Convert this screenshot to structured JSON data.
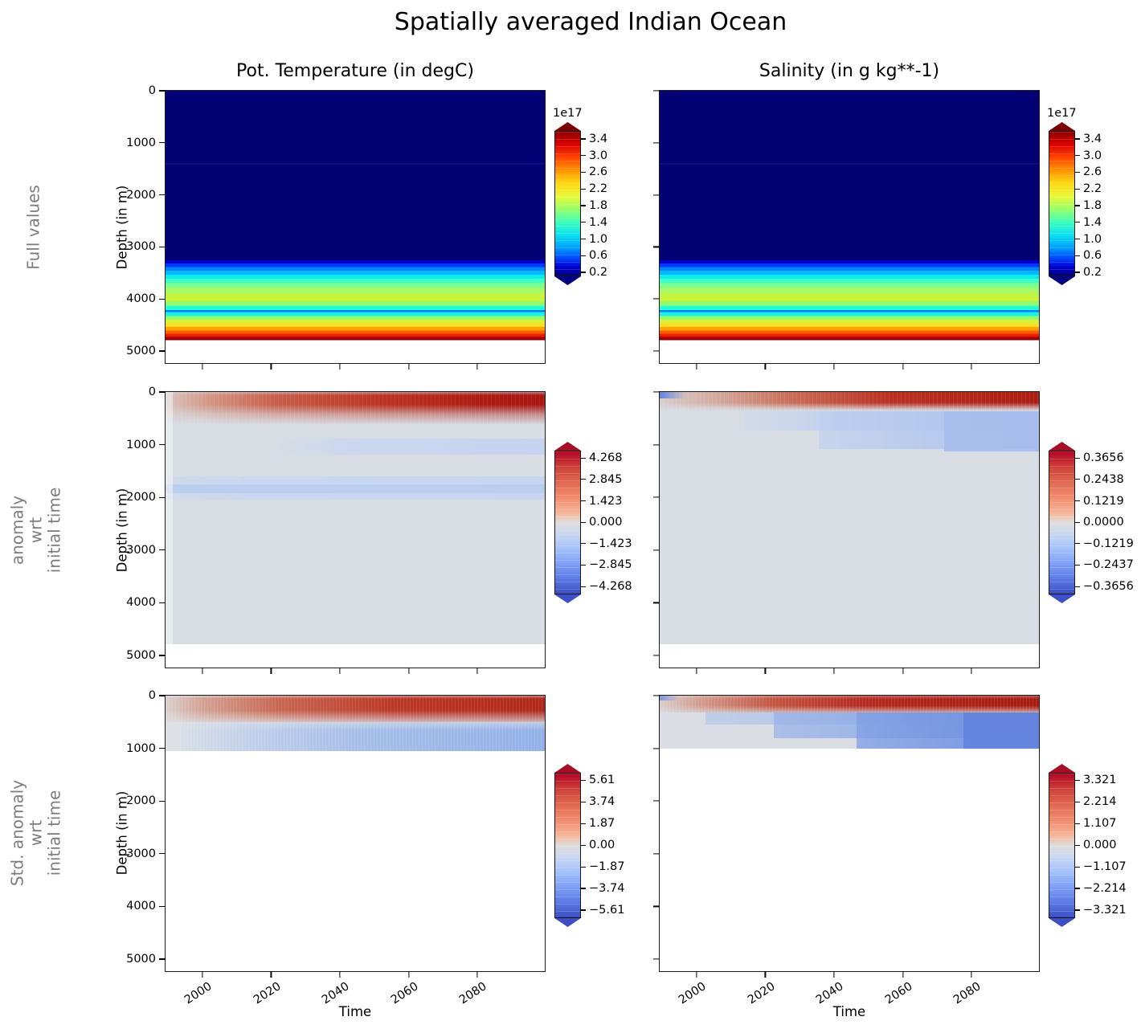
{
  "figure": {
    "title": "Spatially averaged Indian Ocean",
    "column_titles": [
      "Pot. Temperature (in degC)",
      "Salinity (in g kg**-1)"
    ],
    "row_labels": [
      [
        "Full values"
      ],
      [
        "anomaly",
        "wrt",
        "initial time"
      ],
      [
        "Std. anomaly",
        "wrt",
        "initial time"
      ]
    ],
    "xlabel": "Time",
    "ylabel": "Depth (in m)"
  },
  "axes": {
    "x_ticks": [
      "2000",
      "2020",
      "2040",
      "2060",
      "2080"
    ],
    "y_ticks": [
      "0",
      "1000",
      "2000",
      "3000",
      "4000",
      "5000"
    ]
  },
  "colorbars": {
    "full_values": {
      "scale_label": "1e17",
      "ticks": [
        "3.4",
        "3.0",
        "2.6",
        "2.2",
        "1.8",
        "1.4",
        "1.0",
        "0.6",
        "0.2"
      ]
    },
    "anomaly_temp": {
      "ticks": [
        "4.268",
        "2.845",
        "1.423",
        "0.000",
        "−1.423",
        "−2.845",
        "−4.268"
      ]
    },
    "anomaly_sal": {
      "ticks": [
        "0.3656",
        "0.2438",
        "0.1219",
        "0.0000",
        "−0.1219",
        "−0.2437",
        "−0.3656"
      ]
    },
    "std_anomaly_temp": {
      "ticks": [
        "5.61",
        "3.74",
        "1.87",
        "0.00",
        "−1.87",
        "−3.74",
        "−5.61"
      ]
    },
    "std_anomaly_sal": {
      "ticks": [
        "3.321",
        "2.214",
        "1.107",
        "0.000",
        "−1.107",
        "−2.214",
        "−3.321"
      ]
    }
  },
  "colors": {
    "row_label_gray": "#7d7d7d",
    "anomaly_background": "#d8dde4",
    "anomaly_red_max": "#a81c10",
    "anomaly_blue_max": "#6487de",
    "jet_navy": "#020274",
    "coolwarm_top": "#b40426",
    "coolwarm_bottom": "#3d50c3"
  },
  "chart_data": [
    {
      "panel": "full_values_pot_temperature",
      "type": "heatmap",
      "title": "Pot. Temperature (in degC)",
      "x": {
        "label": "Time",
        "range": [
          1990,
          2100
        ],
        "ticks": [
          2000,
          2020,
          2040,
          2060,
          2080
        ]
      },
      "y": {
        "label": "Depth (in m)",
        "range": [
          0,
          5230
        ],
        "ticks": [
          0,
          1000,
          2000,
          3000,
          4000,
          5000
        ],
        "inverted": true
      },
      "colormap": "jet",
      "colorbar": {
        "scale": "1e17",
        "ticks": [
          3.4,
          3.0,
          2.6,
          2.2,
          1.8,
          1.4,
          1.0,
          0.6,
          0.2
        ],
        "extend": "both"
      },
      "pattern": "time-constant horizontal bands (weighted full values)",
      "depth_profile_value_1e17": [
        [
          0,
          0.1
        ],
        [
          1400,
          0.15
        ],
        [
          3200,
          0.1
        ],
        [
          3350,
          0.6
        ],
        [
          3500,
          1.1
        ],
        [
          3650,
          1.5
        ],
        [
          3800,
          1.9
        ],
        [
          3975,
          2.3
        ],
        [
          4150,
          1.4
        ],
        [
          4230,
          1.1
        ],
        [
          4330,
          1.7
        ],
        [
          4450,
          2.4
        ],
        [
          4550,
          2.8
        ],
        [
          4650,
          3.1
        ],
        [
          4750,
          3.5
        ]
      ],
      "no_data_below_m": 4790
    },
    {
      "panel": "full_values_salinity",
      "type": "heatmap",
      "title": "Salinity (in g kg**-1)",
      "x": {
        "label": "Time",
        "range": [
          1990,
          2100
        ],
        "ticks": [
          2000,
          2020,
          2040,
          2060,
          2080
        ]
      },
      "y": {
        "label": "Depth (in m)",
        "range": [
          0,
          5230
        ],
        "ticks": [
          0,
          1000,
          2000,
          3000,
          4000,
          5000
        ],
        "inverted": true
      },
      "colormap": "jet",
      "colorbar": {
        "scale": "1e17",
        "ticks": [
          3.4,
          3.0,
          2.6,
          2.2,
          1.8,
          1.4,
          1.0,
          0.6,
          0.2
        ],
        "extend": "both"
      },
      "pattern": "identical banded structure to temperature panel: dark navy 0–3270 m with faint lighter line near 1400 m, rainbow ramp 3270–4790 m, no data below",
      "no_data_below_m": 4790
    },
    {
      "panel": "anomaly_pot_temperature",
      "type": "heatmap",
      "x": {
        "label": "Time",
        "range": [
          1990,
          2100
        ],
        "ticks": [
          2000,
          2020,
          2040,
          2060,
          2080
        ]
      },
      "y": {
        "label": "Depth (in m)",
        "range": [
          0,
          5230
        ],
        "ticks": [
          0,
          1000,
          2000,
          3000,
          4000,
          5000
        ],
        "inverted": true
      },
      "colormap": "coolwarm",
      "colorbar": {
        "ticks": [
          4.268,
          2.845,
          1.423,
          0.0,
          -1.423,
          -2.845,
          -4.268
        ],
        "extend": "both"
      },
      "features": [
        "warm positive anomaly band 0–600 m strengthening from ~0 in 1990 to ~+3 by 2100",
        "weak negative band ~900–1150 m appearing after ~2030 (~−0.5)",
        "weak negative band ~1650–2050 m across all times (~−0.5)",
        "near-zero (~0) pale background elsewhere down to 4790 m, no data below"
      ]
    },
    {
      "panel": "anomaly_salinity",
      "type": "heatmap",
      "x": {
        "label": "Time",
        "range": [
          1990,
          2100
        ],
        "ticks": [
          2000,
          2020,
          2040,
          2060,
          2080
        ]
      },
      "y": {
        "label": "Depth (in m)",
        "range": [
          0,
          5230
        ],
        "ticks": [
          0,
          1000,
          2000,
          3000,
          4000,
          5000
        ],
        "inverted": true
      },
      "colormap": "coolwarm",
      "colorbar": {
        "ticks": [
          0.3656,
          0.2438,
          0.1219,
          0.0,
          -0.1219,
          -0.2437,
          -0.3656
        ],
        "extend": "both"
      },
      "features": [
        "thin positive band 0–350 m strengthening with time (~+0.3 by 2100)",
        "small negative patch at surface in first years (upper-left corner)",
        "negative band ~350–1100 m growing from ~2015 onward (~−0.1)",
        "near-zero pale background elsewhere down to 4790 m, no data below"
      ]
    },
    {
      "panel": "std_anomaly_pot_temperature",
      "type": "heatmap",
      "x": {
        "label": "Time",
        "range": [
          1990,
          2100
        ],
        "ticks": [
          2000,
          2020,
          2040,
          2060,
          2080
        ]
      },
      "y": {
        "label": "Depth (in m)",
        "range": [
          0,
          5230
        ],
        "ticks": [
          0,
          1000,
          2000,
          3000,
          4000,
          5000
        ],
        "inverted": true
      },
      "colormap": "coolwarm",
      "colorbar": {
        "ticks": [
          5.61,
          3.74,
          1.87,
          0.0,
          -1.87,
          -3.74,
          -5.61
        ],
        "extend": "both"
      },
      "features": [
        "data only above ~1050 m, white (masked) below",
        "positive band 0–500 m strengthening with time (~+4 by 2100)",
        "negative band ~500–1050 m strengthening with time (~−2)"
      ]
    },
    {
      "panel": "std_anomaly_salinity",
      "type": "heatmap",
      "x": {
        "label": "Time",
        "range": [
          1990,
          2100
        ],
        "ticks": [
          2000,
          2020,
          2040,
          2060,
          2080
        ]
      },
      "y": {
        "label": "Depth (in m)",
        "range": [
          0,
          5230
        ],
        "ticks": [
          0,
          1000,
          2000,
          3000,
          4000,
          5000
        ],
        "inverted": true
      },
      "colormap": "coolwarm",
      "colorbar": {
        "ticks": [
          3.321,
          2.214,
          1.107,
          0.0,
          -1.107,
          -2.214,
          -3.321
        ],
        "extend": "both"
      },
      "features": [
        "data only above ~1000 m, white (masked) below",
        "small negative patch at surface in first years (upper-left corner)",
        "positive band 0–300 m strengthening with time (~+3 by 2100)",
        "negative region 300–1000 m deepening stepwise and strengthening toward 2100 (~−2.5)"
      ]
    }
  ]
}
